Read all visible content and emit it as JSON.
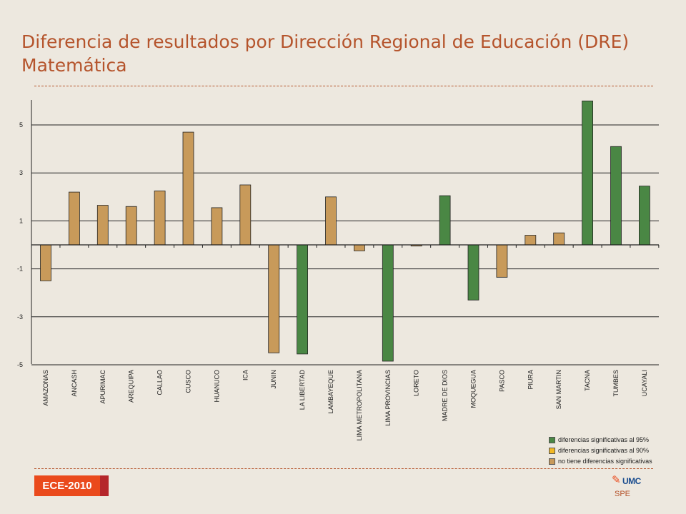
{
  "title": "Diferencia de resultados por Dirección Regional de Educación (DRE) Matemática",
  "chart_data": {
    "type": "bar",
    "categories": [
      "AMAZONAS",
      "ANCASH",
      "APURIMAC",
      "AREQUIPA",
      "CALLAO",
      "CUSCO",
      "HUANUCO",
      "ICA",
      "JUNIN",
      "LA LIBERTAD",
      "LAMBAYEQUE",
      "LIMA METROPOLITANA",
      "LIMA PROVINCIAS",
      "LORETO",
      "MADRE DE DIOS",
      "MOQUEGUA",
      "PASCO",
      "PIURA",
      "SAN MARTIN",
      "TACNA",
      "TUMBES",
      "UCAYALI"
    ],
    "values": [
      -1.5,
      2.2,
      1.65,
      1.6,
      2.25,
      4.7,
      1.55,
      2.5,
      -4.5,
      -4.55,
      2.0,
      -0.25,
      -4.85,
      -0.05,
      2.05,
      -2.3,
      -1.35,
      0.4,
      0.5,
      6.0,
      4.1,
      2.45
    ],
    "significance": [
      "none",
      "none",
      "none",
      "none",
      "none",
      "none",
      "none",
      "none",
      "none",
      "95",
      "none",
      "none",
      "95",
      "none",
      "95",
      "95",
      "none",
      "none",
      "none",
      "95",
      "95",
      "95"
    ],
    "yticks": [
      5,
      3,
      1,
      -1,
      -3,
      -5
    ],
    "ylim": [
      -5,
      6
    ],
    "grid": true,
    "legend": [
      {
        "key": "95",
        "label": "diferencias significativas al 95%",
        "color": "#4a8744"
      },
      {
        "key": "90",
        "label": "diferencias significativas al 90%",
        "color": "#f2b824"
      },
      {
        "key": "none",
        "label": "no tiene diferencias significativas",
        "color": "#c89a5a"
      }
    ],
    "legend_position": "bottom-right"
  },
  "footer": {
    "badge_label": "ECE-2010",
    "logo_text": "UMC",
    "spe_label": "SPE"
  },
  "colors": {
    "accent": "#b5542c",
    "badge": "#ea4a1c",
    "badge_stripe": "#b5262b",
    "bar_95": "#4a8744",
    "bar_90": "#f2b824",
    "bar_none": "#c89a5a"
  }
}
